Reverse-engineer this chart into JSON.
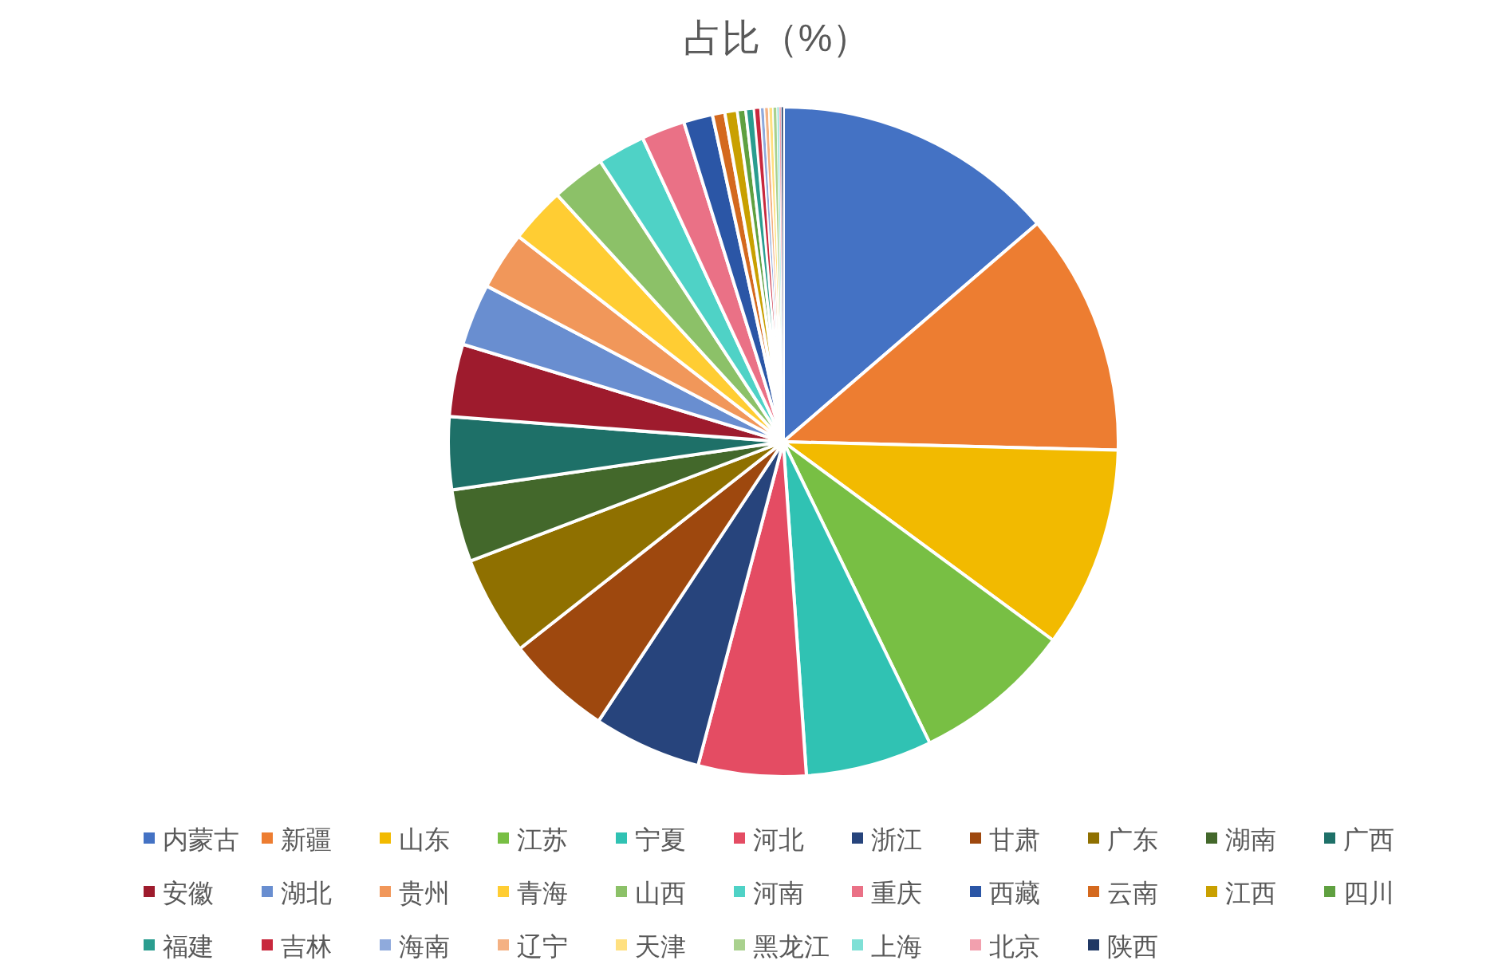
{
  "chart_data": {
    "type": "pie",
    "title": "占比（%）",
    "categories": [
      "内蒙古",
      "新疆",
      "山东",
      "江苏",
      "宁夏",
      "河北",
      "浙江",
      "甘肃",
      "广东",
      "湖南",
      "广西",
      "安徽",
      "湖北",
      "贵州",
      "青海",
      "山西",
      "河南",
      "重庆",
      "西藏",
      "云南",
      "江西",
      "四川",
      "福建",
      "吉林",
      "海南",
      "辽宁",
      "天津",
      "黑龙江",
      "上海",
      "北京",
      "陕西"
    ],
    "values": [
      13.7,
      11.7,
      9.7,
      7.7,
      6.1,
      5.2,
      5.2,
      5.1,
      4.8,
      3.5,
      3.5,
      3.5,
      3.0,
      2.8,
      2.7,
      2.6,
      2.3,
      2.1,
      1.4,
      0.6,
      0.6,
      0.4,
      0.4,
      0.3,
      0.2,
      0.2,
      0.2,
      0.2,
      0.1,
      0.1,
      0.1
    ],
    "colors": [
      "#4472c4",
      "#ed7d31",
      "#f2ba00",
      "#78bf44",
      "#30c2b3",
      "#e44c63",
      "#27447c",
      "#9e480e",
      "#8f7000",
      "#43682b",
      "#1e7068",
      "#9e1b2d",
      "#698ed0",
      "#f1975a",
      "#ffcd33",
      "#8cc168",
      "#4fd2c6",
      "#ea7186",
      "#2b56a6",
      "#d4691e",
      "#c9a000",
      "#5fa040",
      "#2a9d8f",
      "#c8283d",
      "#8faadc",
      "#f4b183",
      "#ffe080",
      "#a9d18e",
      "#7fe0d6",
      "#f2a0ae",
      "#203864"
    ],
    "legend": "bottom"
  }
}
